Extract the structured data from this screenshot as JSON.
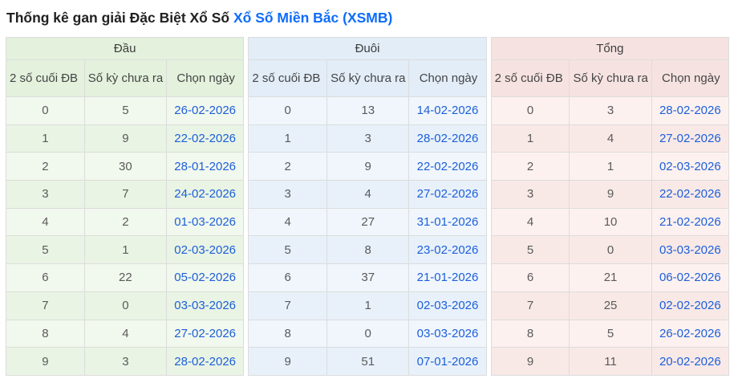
{
  "title": {
    "text": "Thống kê gan giải Đặc Biệt Xổ Số",
    "link_text": "Xổ Số Miền Bắc (XSMB)"
  },
  "table": {
    "columns": [
      "2 số cuối ĐB",
      "Số kỳ chưa ra",
      "Chọn ngày"
    ],
    "groups": [
      {
        "name": "Đầu",
        "theme": "green",
        "rows": [
          [
            "0",
            "5",
            "26-02-2026"
          ],
          [
            "1",
            "9",
            "22-02-2026"
          ],
          [
            "2",
            "30",
            "28-01-2026"
          ],
          [
            "3",
            "7",
            "24-02-2026"
          ],
          [
            "4",
            "2",
            "01-03-2026"
          ],
          [
            "5",
            "1",
            "02-03-2026"
          ],
          [
            "6",
            "22",
            "05-02-2026"
          ],
          [
            "7",
            "0",
            "03-03-2026"
          ],
          [
            "8",
            "4",
            "27-02-2026"
          ],
          [
            "9",
            "3",
            "28-02-2026"
          ]
        ]
      },
      {
        "name": "Đuôi",
        "theme": "blue",
        "rows": [
          [
            "0",
            "13",
            "14-02-2026"
          ],
          [
            "1",
            "3",
            "28-02-2026"
          ],
          [
            "2",
            "9",
            "22-02-2026"
          ],
          [
            "3",
            "4",
            "27-02-2026"
          ],
          [
            "4",
            "27",
            "31-01-2026"
          ],
          [
            "5",
            "8",
            "23-02-2026"
          ],
          [
            "6",
            "37",
            "21-01-2026"
          ],
          [
            "7",
            "1",
            "02-03-2026"
          ],
          [
            "8",
            "0",
            "03-03-2026"
          ],
          [
            "9",
            "51",
            "07-01-2026"
          ]
        ]
      },
      {
        "name": "Tổng",
        "theme": "pink",
        "rows": [
          [
            "0",
            "3",
            "28-02-2026"
          ],
          [
            "1",
            "4",
            "27-02-2026"
          ],
          [
            "2",
            "1",
            "02-03-2026"
          ],
          [
            "3",
            "9",
            "22-02-2026"
          ],
          [
            "4",
            "10",
            "21-02-2026"
          ],
          [
            "5",
            "0",
            "03-03-2026"
          ],
          [
            "6",
            "21",
            "06-02-2026"
          ],
          [
            "7",
            "25",
            "02-02-2026"
          ],
          [
            "8",
            "5",
            "26-02-2026"
          ],
          [
            "9",
            "11",
            "20-02-2026"
          ]
        ]
      }
    ]
  },
  "colors": {
    "title_link_blue": "#0d6cfb",
    "date_link_blue": "#1d5fd9",
    "dau_header_green": "#e3f1dd",
    "duoi_header_blue": "#e2edf8",
    "tong_header_pink": "#f6e3e1",
    "border_gray": "#dcdcdc"
  }
}
